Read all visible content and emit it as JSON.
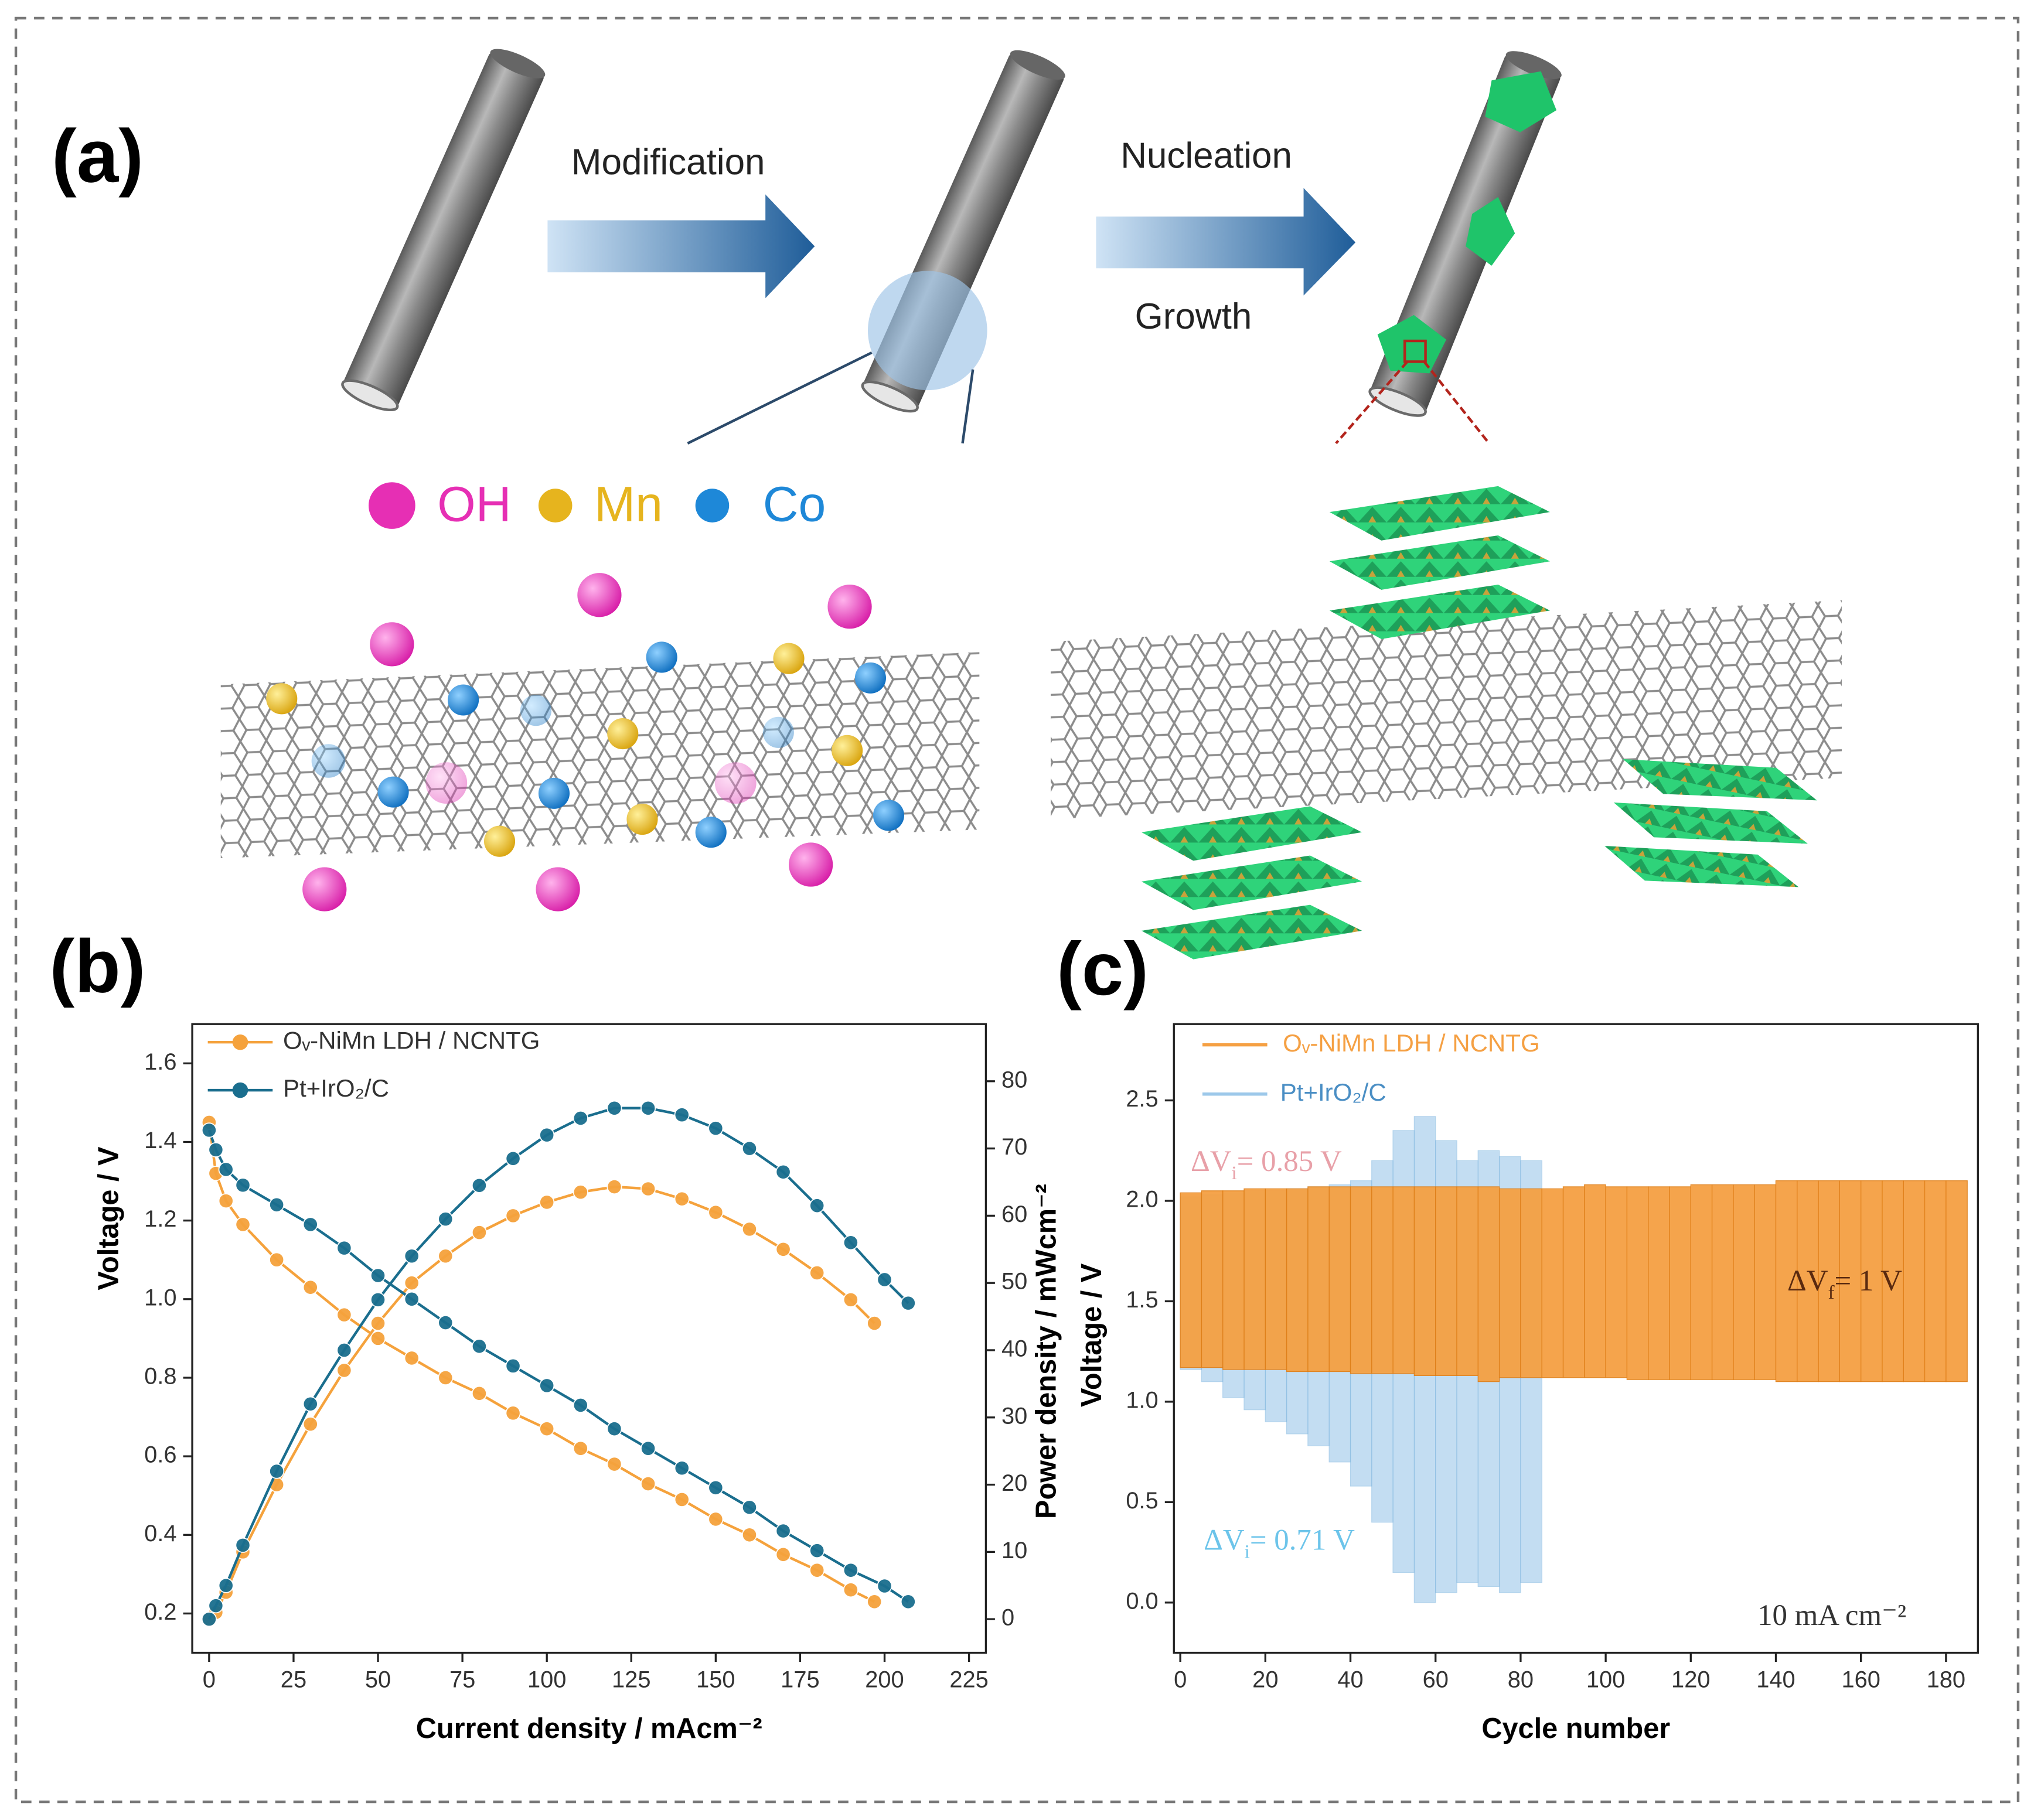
{
  "figure": {
    "panel_labels": [
      "(a)",
      "(b)",
      "(c)"
    ],
    "steps": [
      "Modification",
      "Nucleation",
      "Growth"
    ],
    "legend": [
      {
        "label": "OH",
        "color": "#e62fb4"
      },
      {
        "label": "Mn",
        "color": "#e6b41e"
      },
      {
        "label": "Co",
        "color": "#1e88d8"
      }
    ]
  },
  "chart_data": [
    {
      "type": "line",
      "xlabel": "Current density / mAcm⁻²",
      "ylabel": "Voltage / V",
      "y2label": "Power density / mWcm⁻²",
      "xlim": [
        -5,
        230
      ],
      "xticks": [
        0,
        25,
        50,
        75,
        100,
        125,
        150,
        175,
        200,
        225
      ],
      "ylim": [
        0.1,
        1.7
      ],
      "yticks": [
        0.2,
        0.4,
        0.6,
        0.8,
        {
          "value": 1,
          "label": "1.0"
        },
        1.2,
        1.4,
        1.6
      ],
      "y2lim": [
        -5,
        88.5
      ],
      "y2ticks": [
        0,
        10,
        20,
        30,
        40,
        50,
        60,
        70,
        80
      ],
      "legend": "upper left",
      "series": [
        {
          "name": "Oᵥ-NiMn LDH / NCNTG",
          "color": "#f5a23c",
          "x": [
            0,
            2,
            5,
            10,
            20,
            30,
            40,
            50,
            60,
            70,
            80,
            90,
            100,
            110,
            120,
            130,
            140,
            150,
            160,
            170,
            180,
            190,
            197
          ],
          "values": [
            1.45,
            1.32,
            1.25,
            1.19,
            1.1,
            1.03,
            0.96,
            0.9,
            0.85,
            0.8,
            0.76,
            0.71,
            0.67,
            0.62,
            0.58,
            0.53,
            0.49,
            0.44,
            0.4,
            0.35,
            0.31,
            0.26,
            0.23
          ],
          "y2_values": [
            0,
            1,
            4,
            10,
            20,
            29,
            37,
            44,
            50,
            54,
            57.5,
            60,
            62,
            63.5,
            64.3,
            64,
            62.5,
            60.5,
            58,
            55,
            51.5,
            47.5,
            44
          ]
        },
        {
          "name": "Pt+IrO₂/C",
          "color": "#1a6e8e",
          "x": [
            0,
            2,
            5,
            10,
            20,
            30,
            40,
            50,
            60,
            70,
            80,
            90,
            100,
            110,
            120,
            130,
            140,
            150,
            160,
            170,
            180,
            190,
            200,
            207
          ],
          "values": [
            1.43,
            1.38,
            1.33,
            1.29,
            1.24,
            1.19,
            1.13,
            1.06,
            1.0,
            0.94,
            0.88,
            0.83,
            0.78,
            0.73,
            0.67,
            0.62,
            0.57,
            0.52,
            0.47,
            0.41,
            0.36,
            0.31,
            0.27,
            0.23
          ],
          "y2_values": [
            0,
            2,
            5,
            11,
            22,
            32,
            40,
            47.5,
            54,
            59.5,
            64.5,
            68.5,
            72,
            74.5,
            76,
            76,
            75,
            73,
            70,
            66.5,
            61.5,
            56,
            50.5,
            47
          ]
        }
      ]
    },
    {
      "type": "range",
      "xlabel": "Cycle number",
      "ylabel": "Voltage / V",
      "xlim": [
        -1.5,
        187.5
      ],
      "xticks": [
        0,
        20,
        40,
        60,
        80,
        100,
        120,
        140,
        160,
        180
      ],
      "ylim": [
        -0.25,
        2.88
      ],
      "yticks": [
        {
          "value": 0,
          "label": "0.0"
        },
        0.5,
        {
          "value": 1,
          "label": "1.0"
        },
        1.5,
        {
          "value": 2,
          "label": "2.0"
        },
        2.5
      ],
      "legend": "upper left",
      "series": [
        {
          "name": "Pt+IrO₂/C",
          "color": "#9cc8ea",
          "x": [
            0,
            5,
            10,
            15,
            20,
            25,
            30,
            35,
            40,
            45,
            50,
            55,
            60,
            65,
            70,
            75,
            80
          ],
          "charge_values": [
            2.02,
            2.03,
            2.04,
            2.05,
            2.05,
            2.06,
            2.07,
            2.08,
            2.1,
            2.2,
            2.35,
            2.42,
            2.3,
            2.2,
            2.25,
            2.22,
            2.2
          ],
          "discharge_values": [
            1.16,
            1.1,
            1.02,
            0.96,
            0.9,
            0.84,
            0.78,
            0.7,
            0.58,
            0.4,
            0.15,
            0.0,
            0.05,
            0.1,
            0.08,
            0.05,
            0.1
          ]
        },
        {
          "name": "Oᵥ-NiMn LDH / NCNTG",
          "color": "#f5a043",
          "x": [
            0,
            5,
            10,
            15,
            20,
            25,
            30,
            35,
            40,
            45,
            50,
            55,
            60,
            65,
            70,
            75,
            80,
            85,
            90,
            95,
            100,
            105,
            110,
            115,
            120,
            125,
            130,
            135,
            140,
            145,
            150,
            155,
            160,
            165,
            170,
            175,
            180
          ],
          "charge_values": [
            2.04,
            2.05,
            2.05,
            2.06,
            2.06,
            2.06,
            2.07,
            2.07,
            2.07,
            2.07,
            2.07,
            2.07,
            2.07,
            2.07,
            2.07,
            2.06,
            2.06,
            2.06,
            2.07,
            2.08,
            2.07,
            2.07,
            2.07,
            2.07,
            2.08,
            2.08,
            2.08,
            2.08,
            2.1,
            2.1,
            2.1,
            2.1,
            2.1,
            2.1,
            2.1,
            2.1,
            2.1
          ],
          "discharge_values": [
            1.17,
            1.17,
            1.16,
            1.16,
            1.16,
            1.15,
            1.15,
            1.15,
            1.14,
            1.14,
            1.14,
            1.13,
            1.13,
            1.13,
            1.1,
            1.12,
            1.12,
            1.12,
            1.12,
            1.12,
            1.12,
            1.11,
            1.11,
            1.11,
            1.11,
            1.11,
            1.11,
            1.11,
            1.1,
            1.1,
            1.1,
            1.1,
            1.1,
            1.1,
            1.1,
            1.1,
            1.1
          ]
        }
      ],
      "annotations": [
        {
          "text": [
            "ΔV",
            "i",
            "= 0.85 V"
          ],
          "color": "#e8a0a8"
        },
        {
          "text": [
            "ΔV",
            "f",
            "= 1 V"
          ],
          "color": "#5a2a10"
        },
        {
          "text": [
            "ΔV",
            "i",
            "= 0.71 V"
          ],
          "color": "#6cc4ea"
        },
        {
          "text": [
            "10 mA cm⁻²"
          ],
          "color": "#333333"
        }
      ]
    }
  ]
}
